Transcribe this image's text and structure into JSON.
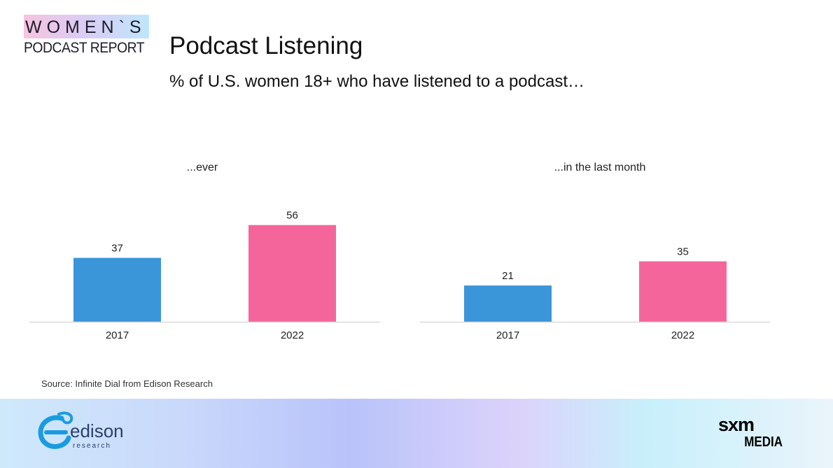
{
  "logo": {
    "line1": "WOMEN`S",
    "line2": "PODCAST REPORT"
  },
  "title": "Podcast Listening",
  "subtitle": "% of U.S. women 18+ who have listened to a podcast…",
  "colors": {
    "y2017": "#3a95d9",
    "y2022": "#f4669b",
    "axis": "#d9d9d9"
  },
  "chart_data": [
    {
      "type": "bar",
      "title": "...ever",
      "categories": [
        "2017",
        "2022"
      ],
      "values": [
        37,
        56
      ],
      "ylim": [
        0,
        60
      ]
    },
    {
      "type": "bar",
      "title": "...in the last month",
      "categories": [
        "2017",
        "2022"
      ],
      "values": [
        21,
        35
      ],
      "ylim": [
        0,
        60
      ]
    }
  ],
  "source": "Source: Infinite Dial from Edison Research",
  "footer": {
    "edison_word": "edison",
    "edison_sub": "research",
    "sxm_line1": "sxm",
    "sxm_line2": "MEDIA"
  }
}
